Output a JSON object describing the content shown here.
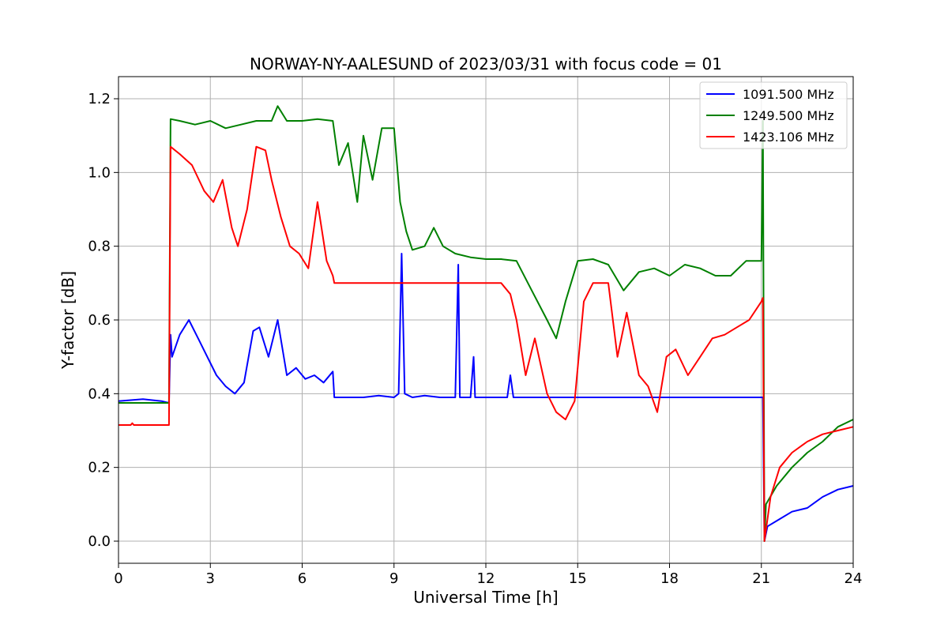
{
  "chart_data": {
    "type": "line",
    "title": "NORWAY-NY-AALESUND of 2023/03/31 with focus code = 01",
    "xlabel": "Universal Time [h]",
    "ylabel": "Y-factor [dB]",
    "xlim": [
      0,
      24
    ],
    "ylim": [
      -0.06,
      1.26
    ],
    "xticks": [
      0,
      3,
      6,
      9,
      12,
      15,
      18,
      21,
      24
    ],
    "xtick_labels": [
      "0",
      "3",
      "6",
      "9",
      "12",
      "15",
      "18",
      "21",
      "24"
    ],
    "yticks": [
      0.0,
      0.2,
      0.4,
      0.6,
      0.8,
      1.0,
      1.2
    ],
    "ytick_labels": [
      "0.0",
      "0.2",
      "0.4",
      "0.6",
      "0.8",
      "1.0",
      "1.2"
    ],
    "grid": true,
    "legend_position": "top-right",
    "series": [
      {
        "name": "1091.500 MHz",
        "color": "#0000ff",
        "x": [
          0,
          0.8,
          1.4,
          1.65,
          1.7,
          1.75,
          2.0,
          2.3,
          2.6,
          2.9,
          3.2,
          3.5,
          3.8,
          4.1,
          4.4,
          4.6,
          4.9,
          5.2,
          5.5,
          5.8,
          6.1,
          6.4,
          6.7,
          7.0,
          7.05,
          7.5,
          8.0,
          8.5,
          9.0,
          9.15,
          9.25,
          9.35,
          9.6,
          10.0,
          10.5,
          11.0,
          11.1,
          11.15,
          11.2,
          11.3,
          11.5,
          11.6,
          11.65,
          12.0,
          12.7,
          12.8,
          12.9,
          13.3,
          14.0,
          15.0,
          16.0,
          17.0,
          18.0,
          19.0,
          20.0,
          20.5,
          21.05,
          21.1,
          21.2,
          21.6,
          22.0,
          22.5,
          23.0,
          23.5,
          24.0
        ],
        "values": [
          0.38,
          0.385,
          0.38,
          0.375,
          0.56,
          0.5,
          0.56,
          0.6,
          0.55,
          0.5,
          0.45,
          0.42,
          0.4,
          0.43,
          0.57,
          0.58,
          0.5,
          0.6,
          0.45,
          0.47,
          0.44,
          0.45,
          0.43,
          0.46,
          0.39,
          0.39,
          0.39,
          0.395,
          0.39,
          0.4,
          0.78,
          0.4,
          0.39,
          0.395,
          0.39,
          0.39,
          0.75,
          0.39,
          0.39,
          0.39,
          0.39,
          0.5,
          0.39,
          0.39,
          0.39,
          0.45,
          0.39,
          0.39,
          0.39,
          0.39,
          0.39,
          0.39,
          0.39,
          0.39,
          0.39,
          0.39,
          0.39,
          0.0,
          0.04,
          0.06,
          0.08,
          0.09,
          0.12,
          0.14,
          0.15
        ]
      },
      {
        "name": "1249.500 MHz",
        "color": "#008000",
        "x": [
          0,
          1.6,
          1.65,
          1.7,
          2.0,
          2.5,
          3.0,
          3.5,
          4.0,
          4.5,
          5.0,
          5.2,
          5.5,
          6.0,
          6.5,
          7.0,
          7.2,
          7.5,
          7.8,
          8.0,
          8.3,
          8.6,
          9.0,
          9.2,
          9.4,
          9.6,
          10.0,
          10.3,
          10.6,
          11.0,
          11.5,
          12.0,
          12.5,
          13.0,
          13.5,
          14.0,
          14.3,
          14.6,
          15.0,
          15.5,
          16.0,
          16.5,
          17.0,
          17.5,
          18.0,
          18.5,
          19.0,
          19.5,
          20.0,
          20.5,
          21.0,
          21.05,
          21.1,
          21.15,
          21.5,
          22.0,
          22.5,
          23.0,
          23.5,
          24.0
        ],
        "values": [
          0.375,
          0.375,
          0.375,
          1.145,
          1.14,
          1.13,
          1.14,
          1.12,
          1.13,
          1.14,
          1.14,
          1.18,
          1.14,
          1.14,
          1.145,
          1.14,
          1.02,
          1.08,
          0.92,
          1.1,
          0.98,
          1.12,
          1.12,
          0.92,
          0.84,
          0.79,
          0.8,
          0.85,
          0.8,
          0.78,
          0.77,
          0.765,
          0.765,
          0.76,
          0.68,
          0.6,
          0.55,
          0.65,
          0.76,
          0.765,
          0.75,
          0.68,
          0.73,
          0.74,
          0.72,
          0.75,
          0.74,
          0.72,
          0.72,
          0.76,
          0.76,
          1.14,
          0.0,
          0.1,
          0.15,
          0.2,
          0.24,
          0.27,
          0.31,
          0.33
        ]
      },
      {
        "name": "1423.106 MHz",
        "color": "#ff0000",
        "x": [
          0,
          0.4,
          0.45,
          0.5,
          1.6,
          1.65,
          1.7,
          2.0,
          2.4,
          2.8,
          3.1,
          3.4,
          3.7,
          3.9,
          4.2,
          4.5,
          4.8,
          5.0,
          5.3,
          5.6,
          5.9,
          6.2,
          6.5,
          6.8,
          7.0,
          7.05,
          7.5,
          8.0,
          8.5,
          9.0,
          9.5,
          10.0,
          10.5,
          11.0,
          11.5,
          12.0,
          12.5,
          12.8,
          13.0,
          13.3,
          13.6,
          14.0,
          14.3,
          14.6,
          14.9,
          15.2,
          15.5,
          16.0,
          16.3,
          16.6,
          17.0,
          17.3,
          17.6,
          17.9,
          18.2,
          18.6,
          19.0,
          19.4,
          19.8,
          20.2,
          20.6,
          21.0,
          21.05,
          21.1,
          21.3,
          21.6,
          22.0,
          22.5,
          23.0,
          23.5,
          24.0
        ],
        "values": [
          0.315,
          0.315,
          0.32,
          0.315,
          0.315,
          0.315,
          1.07,
          1.05,
          1.02,
          0.95,
          0.92,
          0.98,
          0.85,
          0.8,
          0.9,
          1.07,
          1.06,
          0.98,
          0.88,
          0.8,
          0.78,
          0.74,
          0.92,
          0.76,
          0.72,
          0.7,
          0.7,
          0.7,
          0.7,
          0.7,
          0.7,
          0.7,
          0.7,
          0.7,
          0.7,
          0.7,
          0.7,
          0.67,
          0.6,
          0.45,
          0.55,
          0.4,
          0.35,
          0.33,
          0.38,
          0.65,
          0.7,
          0.7,
          0.5,
          0.62,
          0.45,
          0.42,
          0.35,
          0.5,
          0.52,
          0.45,
          0.5,
          0.55,
          0.56,
          0.58,
          0.6,
          0.65,
          0.66,
          0.0,
          0.12,
          0.2,
          0.24,
          0.27,
          0.29,
          0.3,
          0.31
        ]
      }
    ]
  }
}
